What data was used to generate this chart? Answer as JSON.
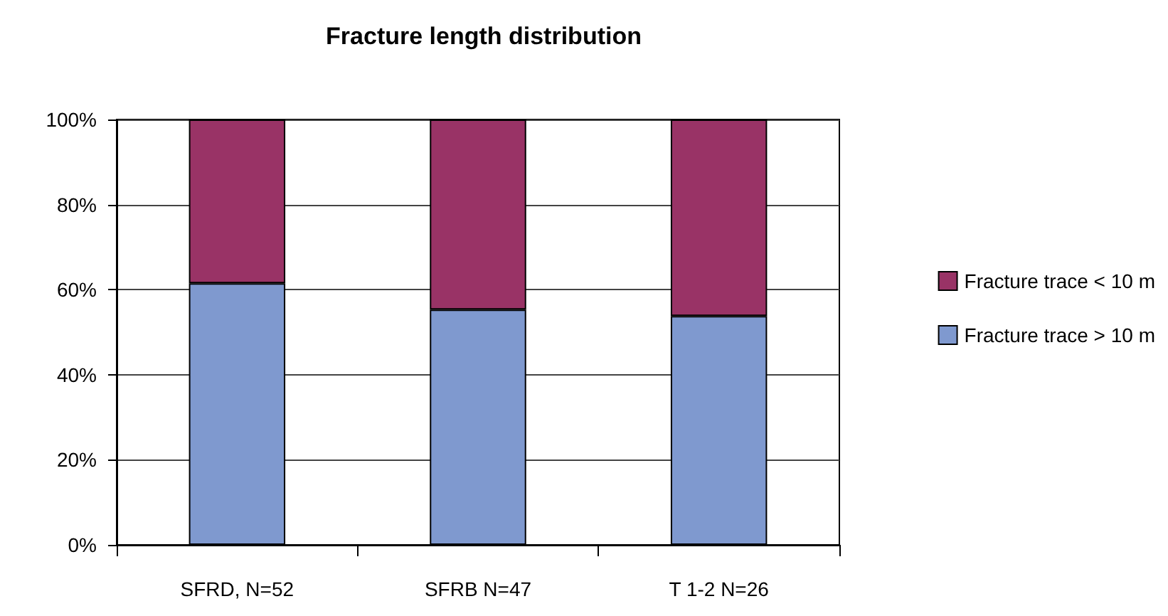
{
  "chart_data": {
    "type": "bar",
    "title": "Fracture length distribution",
    "categories": [
      "SFRD, N=52",
      "SFRB N=47",
      "T 1-2 N=26"
    ],
    "series": [
      {
        "name": "Fracture trace > 10 m",
        "color": "#7f99cf",
        "values": [
          61.5,
          55.3,
          53.8
        ]
      },
      {
        "name": "Fracture trace < 10 m",
        "color": "#993366",
        "values": [
          38.5,
          44.7,
          46.2
        ]
      }
    ],
    "stacked": true,
    "ylim": [
      0,
      100
    ],
    "yticks": [
      {
        "value": 0,
        "label": "0%"
      },
      {
        "value": 20,
        "label": "20%"
      },
      {
        "value": 40,
        "label": "40%"
      },
      {
        "value": 60,
        "label": "60%"
      },
      {
        "value": 80,
        "label": "80%"
      },
      {
        "value": 100,
        "label": "100%"
      }
    ],
    "grid": "y",
    "legend": "right"
  }
}
